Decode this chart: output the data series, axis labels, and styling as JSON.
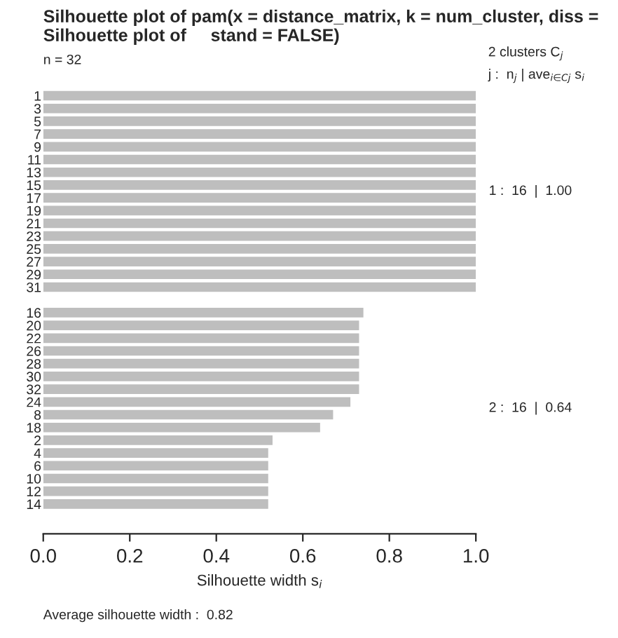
{
  "chart_data": {
    "type": "bar",
    "orientation": "horizontal",
    "title": "Silhouette plot of pam(x = distance_matrix, k = num_cluster, diss =\nSilhouette plot of     stand = FALSE)",
    "subtitle": "n = 32",
    "xlabel": "Silhouette width s$_{i}$",
    "categories": [
      "1",
      "3",
      "5",
      "7",
      "9",
      "11",
      "13",
      "15",
      "17",
      "19",
      "21",
      "23",
      "25",
      "27",
      "29",
      "31",
      null,
      "16",
      "20",
      "22",
      "26",
      "28",
      "30",
      "32",
      "24",
      "8",
      "18",
      "2",
      "4",
      "6",
      "10",
      "12",
      "14"
    ],
    "series": [
      {
        "color": "#bebebe",
        "values": [
          1.0,
          1.0,
          1.0,
          1.0,
          1.0,
          1.0,
          1.0,
          1.0,
          1.0,
          1.0,
          1.0,
          1.0,
          1.0,
          1.0,
          1.0,
          1.0,
          null,
          null,
          null,
          null,
          null,
          null,
          null,
          null,
          null,
          null,
          null,
          null,
          null,
          null,
          null,
          null,
          null
        ]
      },
      {
        "color": "#bebebe",
        "values": [
          null,
          null,
          null,
          null,
          null,
          null,
          null,
          null,
          null,
          null,
          null,
          null,
          null,
          null,
          null,
          null,
          null,
          0.74,
          0.73,
          0.73,
          0.73,
          0.73,
          0.73,
          0.73,
          0.71,
          0.67,
          0.64,
          0.53,
          0.52,
          0.52,
          0.52,
          0.52,
          0.52
        ]
      }
    ],
    "xlim": [
      0,
      1
    ],
    "xticks": [
      {
        "value": 0,
        "label": "0.0"
      },
      {
        "value": 0.2,
        "label": "0.2"
      },
      {
        "value": 0.4,
        "label": "0.4"
      },
      {
        "value": 0.6,
        "label": "0.6"
      },
      {
        "value": 0.8,
        "label": "0.8"
      },
      {
        "value": 1,
        "label": "1.0"
      }
    ],
    "grid": false,
    "legend": false,
    "annotations": [
      "2 clusters C$_{j}$",
      "j :  n$_{j}$ | ave$_{i∈Cj}$ s$_{i}$",
      "1 :  16  |  1.00",
      "2 :  16  |  0.64",
      "Average silhouette width :  0.82"
    ]
  }
}
